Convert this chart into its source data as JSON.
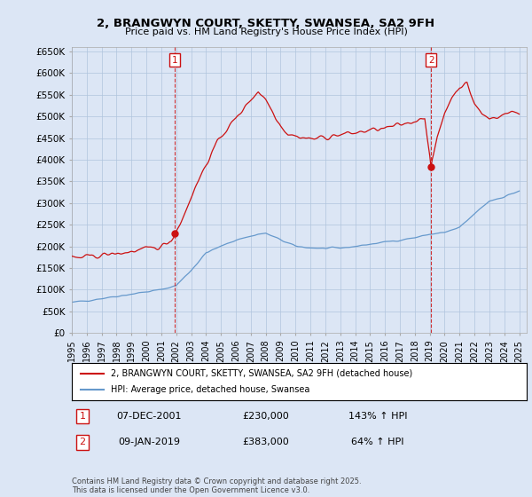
{
  "title": "2, BRANGWYN COURT, SKETTY, SWANSEA, SA2 9FH",
  "subtitle": "Price paid vs. HM Land Registry's House Price Index (HPI)",
  "ylim": [
    0,
    660000
  ],
  "yticks": [
    0,
    50000,
    100000,
    150000,
    200000,
    250000,
    300000,
    350000,
    400000,
    450000,
    500000,
    550000,
    600000,
    650000
  ],
  "ytick_labels": [
    "£0",
    "£50K",
    "£100K",
    "£150K",
    "£200K",
    "£250K",
    "£300K",
    "£350K",
    "£400K",
    "£450K",
    "£500K",
    "£550K",
    "£600K",
    "£650K"
  ],
  "hpi_color": "#6699cc",
  "price_color": "#cc1111",
  "sale1_month": 83,
  "sale2_month": 289,
  "sale1_price_val": 230000,
  "sale2_price_val": 383000,
  "sale1_date": "07-DEC-2001",
  "sale2_date": "09-JAN-2019",
  "sale1_pct": "143% ↑ HPI",
  "sale2_pct": "64% ↑ HPI",
  "legend_line1": "2, BRANGWYN COURT, SKETTY, SWANSEA, SA2 9FH (detached house)",
  "legend_line2": "HPI: Average price, detached house, Swansea",
  "footer": "Contains HM Land Registry data © Crown copyright and database right 2025.\nThis data is licensed under the Open Government Licence v3.0.",
  "bg_color": "#dce6f5",
  "plot_bg": "#dce6f5",
  "grid_color": "#b0c4de",
  "vline_color": "#cc1111",
  "year_start": 1995,
  "n_months": 361
}
